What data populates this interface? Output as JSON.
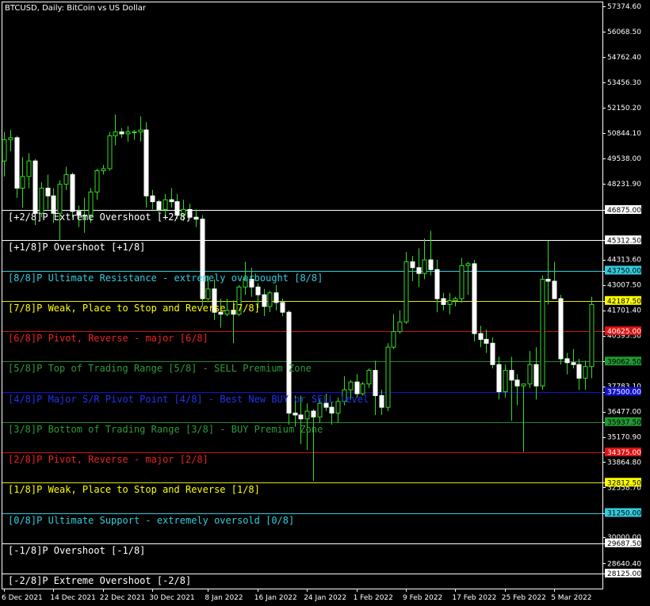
{
  "chart_data": {
    "type": "candlestick",
    "title": "BTCUSD, Daily:  BitCoin vs US Dollar",
    "ylim": [
      27600,
      57800
    ],
    "y_ticks": [
      "57374.60",
      "56068.50",
      "54762.40",
      "53456.30",
      "52150.20",
      "50844.10",
      "49538.00",
      "48231.90",
      "46875.00",
      "45312.50",
      "44313.60",
      "43750.00",
      "43007.50",
      "42187.50",
      "41701.40",
      "40625.00",
      "40395.30",
      "39062.50",
      "37783.10",
      "37500.00",
      "36477.00",
      "35937.50",
      "35170.90",
      "34375.00",
      "33864.80",
      "32812.50",
      "32558.70",
      "31250.00",
      "30000.00",
      "29687.50",
      "28640.40",
      "28125.00"
    ],
    "x_ticks": [
      {
        "label": "6 Dec 2021",
        "i": 0
      },
      {
        "label": "14 Dec 2021",
        "i": 8
      },
      {
        "label": "22 Dec 2021",
        "i": 16
      },
      {
        "label": "30 Dec 2021",
        "i": 24
      },
      {
        "label": "8 Jan 2022",
        "i": 33
      },
      {
        "label": "16 Jan 2022",
        "i": 41
      },
      {
        "label": "24 Jan 2022",
        "i": 49
      },
      {
        "label": "1 Feb 2022",
        "i": 57
      },
      {
        "label": "9 Feb 2022",
        "i": 65
      },
      {
        "label": "17 Feb 2022",
        "i": 73
      },
      {
        "label": "25 Feb 2022",
        "i": 81
      },
      {
        "label": "5 Mar 2022",
        "i": 89
      }
    ],
    "murrey_levels": [
      {
        "label": "[+2/8]P Extreme Overshoot [+2/8]",
        "price": 46875.0,
        "price_label": "46875.00",
        "color": "#ffffff",
        "text_color": "#ffffff",
        "box_fill": "#ffffff",
        "box_text": "#000000"
      },
      {
        "label": "[+1/8]P Overshoot [+1/8]",
        "price": 45312.5,
        "price_label": "45312.50",
        "color": "#ffffff",
        "text_color": "#ffffff",
        "box_fill": "#ffffff",
        "box_text": "#000000"
      },
      {
        "label": "[8/8]P Ultimate Resistance - extremely overbought [8/8]",
        "price": 43750.0,
        "price_label": "43750.00",
        "color": "#33ccdd",
        "text_color": "#33ccdd",
        "box_fill": "#33ccdd",
        "box_text": "#000000"
      },
      {
        "label": "[7/8]P Weak, Place to Stop and Reverse [7/8]",
        "price": 42187.5,
        "price_label": "42187.50",
        "color": "#e6e600",
        "text_color": "#ffff00",
        "box_fill": "#ffff00",
        "box_text": "#000000"
      },
      {
        "label": "[6/8]P Pivot, Reverse - major [6/8]",
        "price": 40625.0,
        "price_label": "40625.00",
        "color": "#cc1111",
        "text_color": "#ee2222",
        "box_fill": "#dd1111",
        "box_text": "#ffffff"
      },
      {
        "label": "[5/8]P Top of Trading Range [5/8] - SELL Premium Zone",
        "price": 39062.5,
        "price_label": "39062.50",
        "color": "#228833",
        "text_color": "#2f9a3a",
        "box_fill": "#229933",
        "box_text": "#000000"
      },
      {
        "label": "[4/8]P Major S/R Pivot Point [4/8] - Best New BUY or SELL level",
        "price": 37500.0,
        "price_label": "37500.00",
        "color": "#1111dd",
        "text_color": "#2233ee",
        "box_fill": "#1111cc",
        "box_text": "#ffffff"
      },
      {
        "label": "[3/8]P Bottom of Trading Range [3/8] - BUY Premium Zone",
        "price": 35937.5,
        "price_label": "35937.50",
        "color": "#228833",
        "text_color": "#2f9a3a",
        "box_fill": "#229933",
        "box_text": "#000000"
      },
      {
        "label": "[2/8]P Pivot, Reverse - major [2/8]",
        "price": 34375.0,
        "price_label": "34375.00",
        "color": "#cc1111",
        "text_color": "#ee2222",
        "box_fill": "#dd1111",
        "box_text": "#ffffff"
      },
      {
        "label": "[1/8]P Weak, Place to Stop and Reverse [1/8]",
        "price": 32812.5,
        "price_label": "32812.50",
        "color": "#e6e600",
        "text_color": "#ffff00",
        "box_fill": "#ffff00",
        "box_text": "#000000"
      },
      {
        "label": "[0/8]P Ultimate Support - extremely oversold [0/8]",
        "price": 31250.0,
        "price_label": "31250.00",
        "color": "#33ccdd",
        "text_color": "#33ccdd",
        "box_fill": "#33ccdd",
        "box_text": "#000000"
      },
      {
        "label": "[-1/8]P Overshoot [-1/8]",
        "price": 29687.5,
        "price_label": "29687.50",
        "color": "#ffffff",
        "text_color": "#ffffff",
        "box_fill": "#ffffff",
        "box_text": "#000000"
      },
      {
        "label": "[-2/8]P Extreme Overshoot [-2/8]",
        "price": 28125.0,
        "price_label": "28125.00",
        "color": "#ffffff",
        "text_color": "#ffffff",
        "box_fill": "#ffffff",
        "box_text": "#000000"
      }
    ],
    "candles": [
      [
        49400,
        50900,
        48600,
        50500
      ],
      [
        50500,
        51000,
        49900,
        50600
      ],
      [
        50600,
        50700,
        47500,
        48000
      ],
      [
        48000,
        49600,
        47000,
        48600
      ],
      [
        48600,
        49800,
        48000,
        49400
      ],
      [
        49400,
        49500,
        46100,
        46700
      ],
      [
        46700,
        48300,
        46500,
        48000
      ],
      [
        48000,
        48700,
        46900,
        47600
      ],
      [
        47600,
        48000,
        46200,
        46700
      ],
      [
        46700,
        48400,
        45300,
        48200
      ],
      [
        48200,
        49100,
        47900,
        48700
      ],
      [
        48700,
        48800,
        46500,
        46800
      ],
      [
        46800,
        47100,
        46000,
        46600
      ],
      [
        46600,
        47500,
        45700,
        46600
      ],
      [
        46600,
        48000,
        46200,
        47800
      ],
      [
        47800,
        49000,
        47400,
        48900
      ],
      [
        48900,
        49200,
        48700,
        49000
      ],
      [
        49000,
        50900,
        48900,
        50700
      ],
      [
        50700,
        51800,
        50200,
        50900
      ],
      [
        50900,
        51100,
        50600,
        50800
      ],
      [
        50800,
        51200,
        50400,
        50900
      ],
      [
        50900,
        51000,
        50500,
        50900
      ],
      [
        50900,
        51700,
        50400,
        51000
      ],
      [
        51000,
        51400,
        47000,
        47600
      ],
      [
        47600,
        47900,
        46900,
        47300
      ],
      [
        47300,
        47400,
        46700,
        46900
      ],
      [
        46900,
        47700,
        46500,
        47400
      ],
      [
        47400,
        48000,
        47000,
        47300
      ],
      [
        47300,
        47700,
        46400,
        46600
      ],
      [
        46600,
        47400,
        46300,
        46900
      ],
      [
        46900,
        47200,
        46400,
        46500
      ],
      [
        46500,
        46900,
        46000,
        46400
      ],
      [
        46400,
        46600,
        41900,
        42300
      ],
      [
        42300,
        43500,
        42200,
        42800
      ],
      [
        42800,
        43300,
        41200,
        41600
      ],
      [
        41600,
        42300,
        40800,
        41500
      ],
      [
        41500,
        42300,
        41400,
        41700
      ],
      [
        41700,
        42200,
        40000,
        41500
      ],
      [
        41500,
        43000,
        41400,
        42900
      ],
      [
        42900,
        44200,
        42500,
        43300
      ],
      [
        43300,
        43900,
        42400,
        42900
      ],
      [
        42900,
        43100,
        41800,
        42500
      ],
      [
        42500,
        42800,
        41400,
        41900
      ],
      [
        41900,
        42700,
        41600,
        42600
      ],
      [
        42600,
        43000,
        41700,
        42100
      ],
      [
        42100,
        42300,
        41400,
        41600
      ],
      [
        41600,
        41700,
        35800,
        36400
      ],
      [
        36400,
        37300,
        35700,
        36300
      ],
      [
        36300,
        37300,
        34800,
        36100
      ],
      [
        36100,
        36900,
        34500,
        36500
      ],
      [
        36500,
        36600,
        32900,
        36200
      ],
      [
        36200,
        37100,
        35900,
        36900
      ],
      [
        36900,
        37400,
        36500,
        36700
      ],
      [
        36700,
        37000,
        35800,
        36400
      ],
      [
        36400,
        37200,
        35900,
        37000
      ],
      [
        37000,
        38300,
        36800,
        37600
      ],
      [
        37600,
        38100,
        37100,
        38000
      ],
      [
        38000,
        38400,
        37200,
        37400
      ],
      [
        37400,
        38000,
        37300,
        37900
      ],
      [
        37900,
        38700,
        37700,
        38600
      ],
      [
        38600,
        39100,
        36300,
        37300
      ],
      [
        37300,
        37600,
        36300,
        36700
      ],
      [
        36700,
        40000,
        36500,
        39800
      ],
      [
        39800,
        41500,
        39700,
        40600
      ],
      [
        40600,
        41700,
        40500,
        41100
      ],
      [
        41100,
        44700,
        41000,
        44200
      ],
      [
        44200,
        44500,
        43200,
        43900
      ],
      [
        43900,
        44900,
        42900,
        43600
      ],
      [
        43600,
        45400,
        43300,
        44300
      ],
      [
        44300,
        45800,
        43500,
        43800
      ],
      [
        43800,
        44300,
        41600,
        42300
      ],
      [
        42300,
        42600,
        41700,
        42000
      ],
      [
        42000,
        42600,
        41500,
        42200
      ],
      [
        42200,
        42400,
        41900,
        42300
      ],
      [
        42300,
        44400,
        42100,
        44000
      ],
      [
        44000,
        44200,
        42500,
        44100
      ],
      [
        44100,
        44300,
        40100,
        40500
      ],
      [
        40500,
        40900,
        39800,
        40200
      ],
      [
        40200,
        40700,
        39500,
        40000
      ],
      [
        40000,
        40300,
        38700,
        38900
      ],
      [
        38900,
        39300,
        37100,
        37500
      ],
      [
        37500,
        38900,
        37200,
        38600
      ],
      [
        38600,
        39300,
        36000,
        38100
      ],
      [
        38100,
        38400,
        36800,
        37800
      ],
      [
        37800,
        37900,
        34400,
        37900
      ],
      [
        37900,
        39600,
        37700,
        38900
      ],
      [
        38900,
        39800,
        37100,
        37800
      ],
      [
        37800,
        43500,
        37600,
        43300
      ],
      [
        43300,
        45300,
        42000,
        43200
      ],
      [
        43200,
        44200,
        42500,
        42300
      ],
      [
        42300,
        42500,
        38900,
        39200
      ],
      [
        39200,
        39500,
        38400,
        39000
      ],
      [
        39000,
        39700,
        38700,
        38900
      ],
      [
        38900,
        39200,
        37600,
        38200
      ],
      [
        38200,
        39100,
        37600,
        38800
      ],
      [
        38800,
        42400,
        38200,
        42000
      ]
    ]
  }
}
